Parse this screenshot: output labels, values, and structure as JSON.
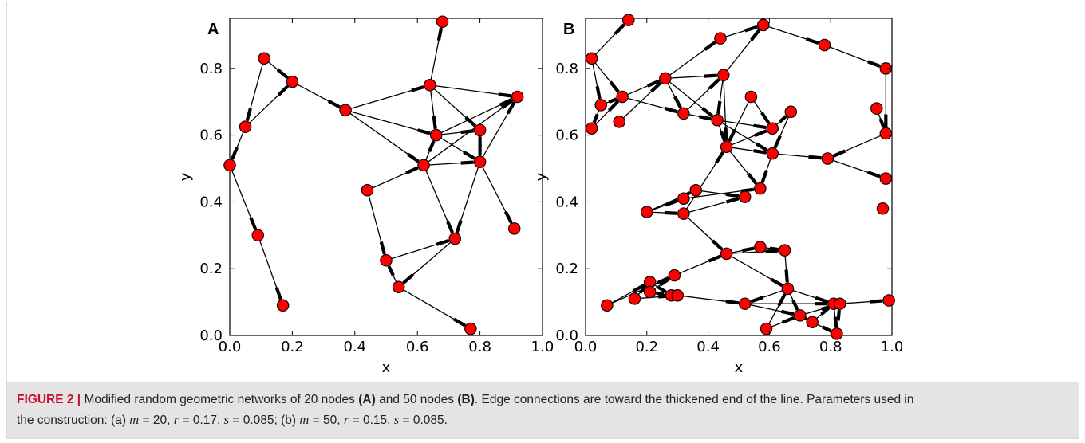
{
  "figure": {
    "caption_label": "FIGURE 2 |",
    "caption_part1": "Modified random geometric networks of 20 nodes",
    "caption_a_ref": "(A)",
    "caption_and": "and 50 nodes",
    "caption_b_ref": "(B)",
    "caption_part2": ". Edge connections are toward the thickened end of the line. Parameters used in",
    "caption_line2_start": "the construction: (a)",
    "params_a": {
      "m": "m",
      "m_val": "= 20,",
      "r": "r",
      "r_val": "= 0.17,",
      "s": "s",
      "s_val": "= 0.085;"
    },
    "caption_b_start": "(b)",
    "params_b": {
      "m": "m",
      "m_val": "= 50,",
      "r": "r",
      "r_val": "= 0.15,",
      "s": "s",
      "s_val": "= 0.085."
    }
  },
  "chart_data": [
    {
      "type": "scatter",
      "panel": "A",
      "xlabel": "x",
      "ylabel": "y",
      "xlim": [
        0.0,
        1.0
      ],
      "ylim": [
        0.0,
        0.95
      ],
      "xticks": [
        "0.0",
        "0.2",
        "0.4",
        "0.6",
        "0.8",
        "1.0"
      ],
      "yticks": [
        "0.0",
        "0.2",
        "0.4",
        "0.6",
        "0.8"
      ],
      "node_color": "#ff0000",
      "edge_color": "#000000",
      "nodes": [
        [
          0.68,
          0.94
        ],
        [
          0.11,
          0.83
        ],
        [
          0.2,
          0.76
        ],
        [
          0.37,
          0.675
        ],
        [
          0.64,
          0.75
        ],
        [
          0.92,
          0.715
        ],
        [
          0.05,
          0.625
        ],
        [
          0.66,
          0.6
        ],
        [
          0.8,
          0.615
        ],
        [
          0.0,
          0.51
        ],
        [
          0.62,
          0.51
        ],
        [
          0.8,
          0.52
        ],
        [
          0.44,
          0.435
        ],
        [
          0.09,
          0.3
        ],
        [
          0.72,
          0.29
        ],
        [
          0.91,
          0.32
        ],
        [
          0.5,
          0.225
        ],
        [
          0.54,
          0.145
        ],
        [
          0.17,
          0.09
        ],
        [
          0.77,
          0.02
        ]
      ],
      "edges": [
        [
          1,
          2
        ],
        [
          1,
          6
        ],
        [
          6,
          2
        ],
        [
          2,
          3
        ],
        [
          6,
          9
        ],
        [
          9,
          13
        ],
        [
          13,
          18
        ],
        [
          3,
          4
        ],
        [
          3,
          7
        ],
        [
          3,
          10
        ],
        [
          4,
          0
        ],
        [
          4,
          5
        ],
        [
          4,
          7
        ],
        [
          4,
          8
        ],
        [
          7,
          5
        ],
        [
          7,
          8
        ],
        [
          10,
          7
        ],
        [
          10,
          5
        ],
        [
          10,
          11
        ],
        [
          11,
          8
        ],
        [
          11,
          5
        ],
        [
          7,
          11
        ],
        [
          8,
          11
        ],
        [
          12,
          10
        ],
        [
          12,
          16
        ],
        [
          10,
          14
        ],
        [
          11,
          14
        ],
        [
          11,
          15
        ],
        [
          16,
          14
        ],
        [
          14,
          17
        ],
        [
          17,
          16
        ],
        [
          17,
          19
        ]
      ]
    },
    {
      "type": "scatter",
      "panel": "B",
      "xlabel": "x",
      "ylabel": "y",
      "xlim": [
        0.0,
        1.0
      ],
      "ylim": [
        0.0,
        0.95
      ],
      "xticks": [
        "0.0",
        "0.2",
        "0.4",
        "0.6",
        "0.8",
        "1.0"
      ],
      "yticks": [
        "0.0",
        "0.2",
        "0.4",
        "0.6",
        "0.8"
      ],
      "node_color": "#ff0000",
      "edge_color": "#000000",
      "nodes": [
        [
          0.14,
          0.945
        ],
        [
          0.02,
          0.83
        ],
        [
          0.44,
          0.89
        ],
        [
          0.58,
          0.93
        ],
        [
          0.78,
          0.87
        ],
        [
          0.98,
          0.8
        ],
        [
          0.05,
          0.69
        ],
        [
          0.12,
          0.715
        ],
        [
          0.26,
          0.77
        ],
        [
          0.45,
          0.78
        ],
        [
          0.02,
          0.62
        ],
        [
          0.11,
          0.64
        ],
        [
          0.32,
          0.665
        ],
        [
          0.43,
          0.645
        ],
        [
          0.54,
          0.715
        ],
        [
          0.67,
          0.67
        ],
        [
          0.61,
          0.62
        ],
        [
          0.95,
          0.68
        ],
        [
          0.98,
          0.605
        ],
        [
          0.46,
          0.565
        ],
        [
          0.61,
          0.545
        ],
        [
          0.79,
          0.53
        ],
        [
          0.98,
          0.47
        ],
        [
          0.97,
          0.38
        ],
        [
          0.36,
          0.435
        ],
        [
          0.32,
          0.41
        ],
        [
          0.57,
          0.44
        ],
        [
          0.52,
          0.415
        ],
        [
          0.2,
          0.37
        ],
        [
          0.32,
          0.365
        ],
        [
          0.46,
          0.245
        ],
        [
          0.57,
          0.265
        ],
        [
          0.65,
          0.255
        ],
        [
          0.29,
          0.18
        ],
        [
          0.21,
          0.16
        ],
        [
          0.16,
          0.11
        ],
        [
          0.21,
          0.13
        ],
        [
          0.28,
          0.12
        ],
        [
          0.3,
          0.12
        ],
        [
          0.07,
          0.09
        ],
        [
          0.52,
          0.095
        ],
        [
          0.66,
          0.14
        ],
        [
          0.7,
          0.06
        ],
        [
          0.74,
          0.04
        ],
        [
          0.81,
          0.095
        ],
        [
          0.83,
          0.095
        ],
        [
          0.99,
          0.105
        ],
        [
          0.59,
          0.02
        ],
        [
          0.82,
          0.005
        ],
        [
          0.58,
          0.93
        ]
      ],
      "edges": [
        [
          1,
          0
        ],
        [
          1,
          6
        ],
        [
          1,
          7
        ],
        [
          6,
          10
        ],
        [
          6,
          7
        ],
        [
          10,
          7
        ],
        [
          7,
          8
        ],
        [
          11,
          8
        ],
        [
          7,
          12
        ],
        [
          8,
          9
        ],
        [
          8,
          2
        ],
        [
          8,
          12
        ],
        [
          8,
          13
        ],
        [
          2,
          3
        ],
        [
          9,
          3
        ],
        [
          3,
          4
        ],
        [
          4,
          5
        ],
        [
          5,
          18
        ],
        [
          17,
          18
        ],
        [
          18,
          21
        ],
        [
          9,
          13
        ],
        [
          9,
          19
        ],
        [
          12,
          13
        ],
        [
          12,
          9
        ],
        [
          13,
          16
        ],
        [
          13,
          20
        ],
        [
          14,
          16
        ],
        [
          14,
          19
        ],
        [
          19,
          16
        ],
        [
          19,
          20
        ],
        [
          19,
          26
        ],
        [
          16,
          15
        ],
        [
          15,
          20
        ],
        [
          20,
          21
        ],
        [
          21,
          22
        ],
        [
          20,
          26
        ],
        [
          13,
          19
        ],
        [
          28,
          25
        ],
        [
          28,
          24
        ],
        [
          25,
          26
        ],
        [
          24,
          27
        ],
        [
          29,
          27
        ],
        [
          29,
          19
        ],
        [
          28,
          29
        ],
        [
          29,
          30
        ],
        [
          30,
          31
        ],
        [
          30,
          32
        ],
        [
          31,
          32
        ],
        [
          32,
          41
        ],
        [
          30,
          41
        ],
        [
          41,
          42
        ],
        [
          41,
          40
        ],
        [
          40,
          42
        ],
        [
          42,
          43
        ],
        [
          43,
          48
        ],
        [
          44,
          48
        ],
        [
          45,
          46
        ],
        [
          44,
          45
        ],
        [
          41,
          44
        ],
        [
          47,
          41
        ],
        [
          47,
          42
        ],
        [
          39,
          34
        ],
        [
          39,
          33
        ],
        [
          35,
          34
        ],
        [
          36,
          33
        ],
        [
          33,
          30
        ],
        [
          38,
          40
        ],
        [
          37,
          36
        ],
        [
          34,
          37
        ],
        [
          35,
          38
        ],
        [
          40,
          44
        ],
        [
          42,
          45
        ],
        [
          43,
          44
        ],
        [
          48,
          45
        ]
      ]
    }
  ]
}
